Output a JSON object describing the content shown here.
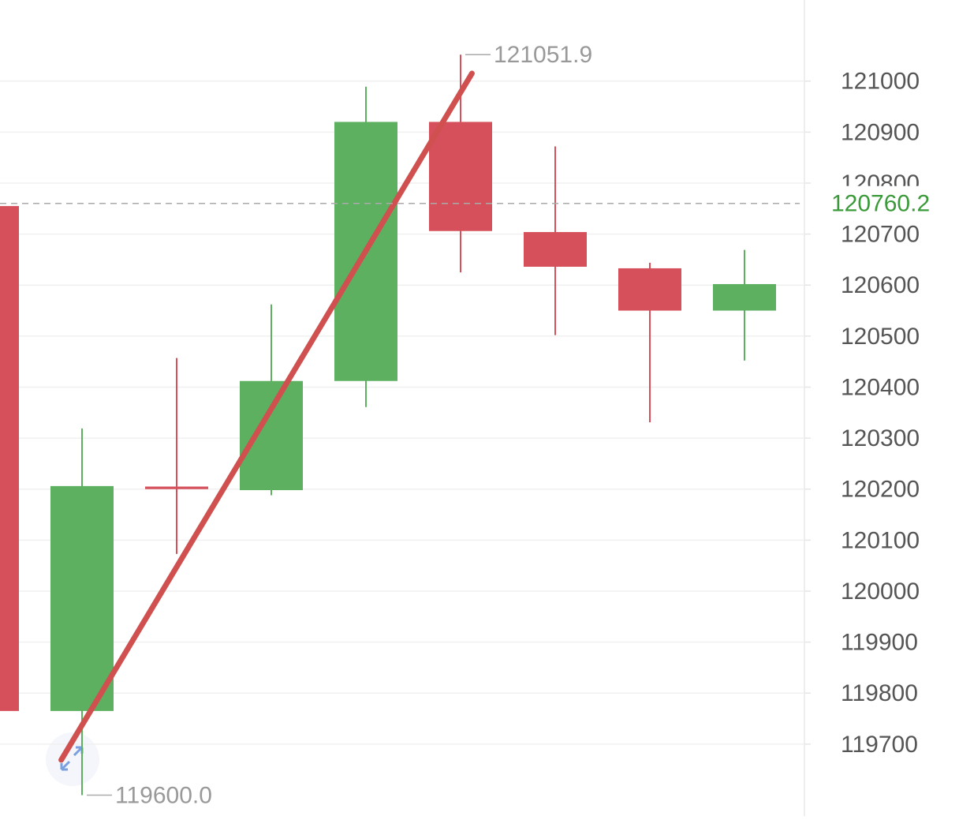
{
  "chart_data": {
    "type": "candlestick",
    "up_color": "#5cb060",
    "down_color": "#d5505a",
    "grid": true,
    "ylim": [
      119559,
      121159
    ],
    "yticks": [
      119700,
      119800,
      119900,
      120000,
      120100,
      120200,
      120300,
      120400,
      120500,
      120600,
      120700,
      120800,
      120900,
      121000
    ],
    "candles": [
      {
        "open": 120755,
        "high": 120755,
        "low": 119765,
        "close": 119765
      },
      {
        "open": 119765,
        "high": 120319,
        "low": 119600,
        "close": 120206
      },
      {
        "open": 120205,
        "high": 120457,
        "low": 120073,
        "close": 120200
      },
      {
        "open": 120198,
        "high": 120562,
        "low": 120188,
        "close": 120412
      },
      {
        "open": 120412,
        "high": 120989,
        "low": 120361,
        "close": 120920
      },
      {
        "open": 120920,
        "high": 121051.9,
        "low": 120625,
        "close": 120706
      },
      {
        "open": 120704,
        "high": 120872,
        "low": 120502,
        "close": 120636
      },
      {
        "open": 120633,
        "high": 120644,
        "low": 120331,
        "close": 120550
      },
      {
        "open": 120550,
        "high": 120669,
        "low": 120452,
        "close": 120602
      }
    ],
    "high_label": {
      "value": 121051.9,
      "label": "121051.9"
    },
    "low_label": {
      "value": 119600,
      "label": "119600.0"
    },
    "last_price": {
      "value": 120760.2,
      "label": "120760.2",
      "color": "#3a9a3a"
    },
    "trendline": {
      "x": [
        -0.22,
        4.12
      ],
      "y": [
        119669,
        121015
      ],
      "color": "#d05050"
    }
  }
}
